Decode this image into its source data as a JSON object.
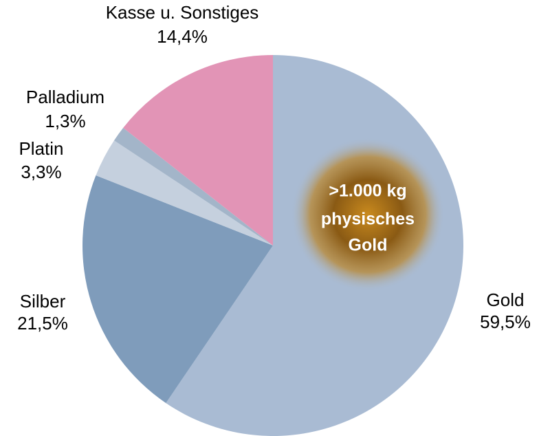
{
  "chart_data": {
    "type": "pie",
    "categories": [
      "Gold",
      "Silber",
      "Platin",
      "Palladium",
      "Kasse u. Sonstiges"
    ],
    "values": [
      59.5,
      21.5,
      3.3,
      1.3,
      14.4
    ],
    "value_labels": [
      "59,5%",
      "21,5%",
      "3,3%",
      "1,3%",
      "14,4%"
    ],
    "colors": [
      "#a9bbd3",
      "#7f9cbb",
      "#c5d0de",
      "#a3b5c9",
      "#e294b6"
    ],
    "annotation": [
      ">1.000 kg",
      "physisches",
      "Gold"
    ]
  }
}
